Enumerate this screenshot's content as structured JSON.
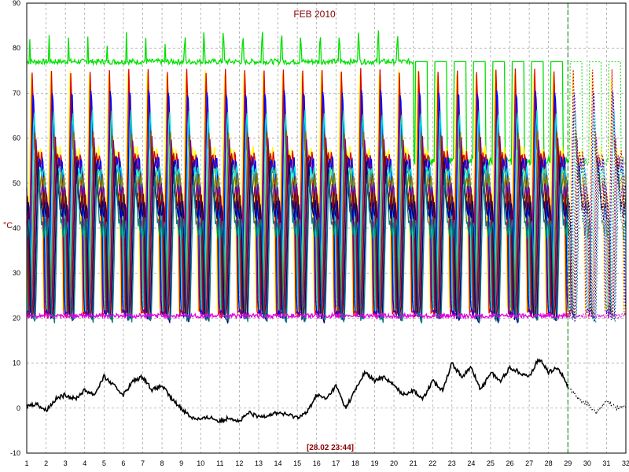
{
  "chart_data": {
    "type": "line",
    "title": "FEB 2010",
    "ylabel": "°C",
    "footer": "[28.02 23:44]",
    "xlim": [
      1,
      32
    ],
    "ylim": [
      -10,
      90
    ],
    "xticks": [
      "1",
      "2",
      "3",
      "4",
      "5",
      "6",
      "7",
      "8",
      "9",
      "10",
      "11",
      "12",
      "13",
      "14",
      "15",
      "16",
      "17",
      "18",
      "19",
      "20",
      "21",
      "22",
      "23",
      "24",
      "25",
      "26",
      "27",
      "28",
      "29",
      "30",
      "31",
      "32"
    ],
    "yticks": [
      "-10",
      "0",
      "10",
      "20",
      "30",
      "40",
      "50",
      "60",
      "70",
      "80",
      "90"
    ],
    "grid": true,
    "current_day_marker": 29,
    "forecast_start": 29,
    "series": [
      {
        "color": "#00e000",
        "kind": "flat",
        "base": 77,
        "noise": 0.6,
        "peak": 84,
        "peak_days": 28,
        "switch_from": 21,
        "switch_low": 55,
        "switch_high": 77
      },
      {
        "color": "#ffff00",
        "kind": "cycle",
        "low": 22,
        "high": 76,
        "plateau": 56
      },
      {
        "color": "#e00000",
        "kind": "cycle",
        "low": 21,
        "high": 75,
        "plateau": 55
      },
      {
        "color": "#0000ff",
        "kind": "cycle",
        "low": 21,
        "high": 73,
        "plateau": 54
      },
      {
        "color": "#00e0e0",
        "kind": "cycle",
        "low": 22,
        "high": 68,
        "plateau": 52
      },
      {
        "color": "#808000",
        "kind": "cycle",
        "low": 22,
        "high": 62,
        "plateau": 50
      },
      {
        "color": "#800080",
        "kind": "cycle",
        "low": 21,
        "high": 60,
        "plateau": 48
      },
      {
        "color": "#800000",
        "kind": "cycle",
        "low": 21,
        "high": 58,
        "plateau": 46
      },
      {
        "color": "#000080",
        "kind": "cycle",
        "low": 20,
        "high": 56,
        "plateau": 44
      },
      {
        "color": "#008080",
        "kind": "cycle",
        "low": 20,
        "high": 53,
        "plateau": 40
      },
      {
        "color": "#e000e0",
        "kind": "flat",
        "base": 20.5,
        "noise": 0.5
      },
      {
        "color": "#000000",
        "kind": "outdoor",
        "points": [
          [
            1,
            0.5
          ],
          [
            1.5,
            1
          ],
          [
            2,
            -0.5
          ],
          [
            2.5,
            2
          ],
          [
            3,
            3
          ],
          [
            3.5,
            2
          ],
          [
            4,
            4
          ],
          [
            4.5,
            3
          ],
          [
            5,
            7
          ],
          [
            5.5,
            5
          ],
          [
            6,
            3
          ],
          [
            6.5,
            6
          ],
          [
            7,
            7
          ],
          [
            7.5,
            4
          ],
          [
            8,
            5
          ],
          [
            8.5,
            2
          ],
          [
            9,
            0
          ],
          [
            9.5,
            -2
          ],
          [
            10,
            -2.5
          ],
          [
            10.5,
            -2
          ],
          [
            11,
            -3
          ],
          [
            11.5,
            -2
          ],
          [
            12,
            -3
          ],
          [
            12.5,
            -1
          ],
          [
            13,
            -2
          ],
          [
            13.5,
            -1.5
          ],
          [
            14,
            -1
          ],
          [
            14.5,
            -1.5
          ],
          [
            15,
            -2
          ],
          [
            15.5,
            -1
          ],
          [
            16,
            3
          ],
          [
            16.5,
            2
          ],
          [
            17,
            5
          ],
          [
            17.5,
            0
          ],
          [
            18,
            4
          ],
          [
            18.5,
            8
          ],
          [
            19,
            6
          ],
          [
            19.5,
            7
          ],
          [
            20,
            5
          ],
          [
            20.5,
            3
          ],
          [
            21,
            4
          ],
          [
            21.5,
            2
          ],
          [
            22,
            6
          ],
          [
            22.5,
            4
          ],
          [
            23,
            10
          ],
          [
            23.5,
            7
          ],
          [
            24,
            9
          ],
          [
            24.5,
            4
          ],
          [
            25,
            8
          ],
          [
            25.5,
            6
          ],
          [
            26,
            9
          ],
          [
            26.5,
            8
          ],
          [
            27,
            7
          ],
          [
            27.5,
            11
          ],
          [
            28,
            8
          ],
          [
            28.5,
            9
          ],
          [
            29,
            5
          ],
          [
            29.5,
            2
          ],
          [
            30,
            1
          ],
          [
            30.5,
            -1
          ],
          [
            31,
            1.5
          ],
          [
            31.5,
            0
          ],
          [
            32,
            0.5
          ]
        ]
      }
    ]
  }
}
